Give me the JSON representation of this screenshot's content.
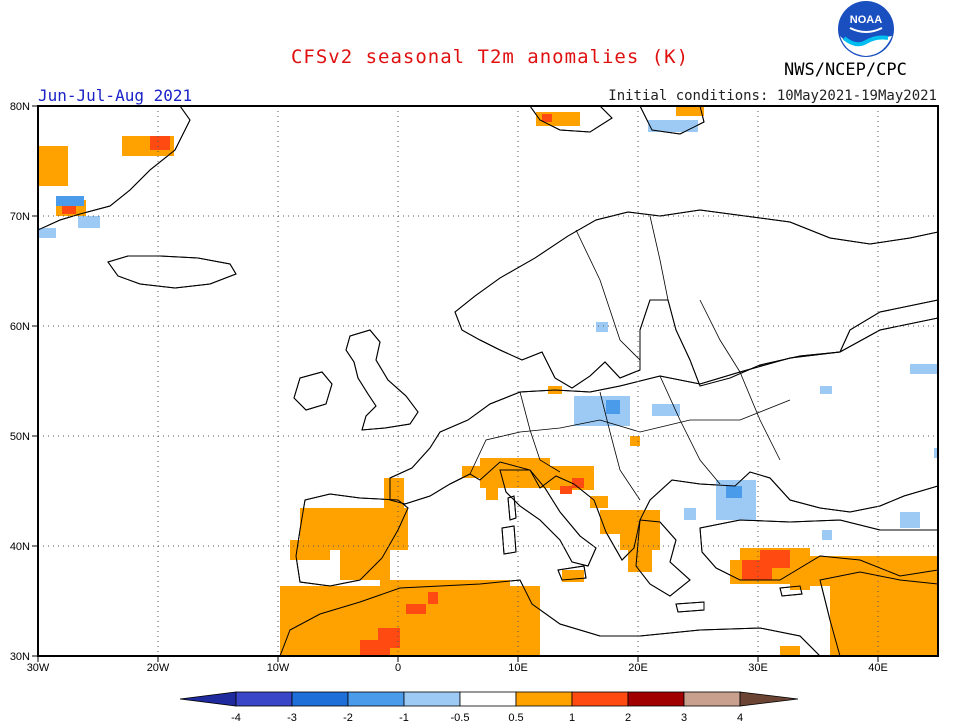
{
  "header": {
    "title": "CFSv2 seasonal T2m anomalies (K)",
    "agency": "NWS/NCEP/CPC",
    "logo_text": "NOAA",
    "season": "Jun-Jul-Aug 2021",
    "initial_conditions": "Initial conditions: 10May2021-19May2021"
  },
  "map": {
    "lon_labels": [
      "30W",
      "20W",
      "10W",
      "0",
      "10E",
      "20E",
      "30E",
      "40E"
    ],
    "lat_labels": [
      "80N",
      "70N",
      "60N",
      "50N",
      "40N",
      "30N"
    ],
    "lon_range": [
      -30,
      45
    ],
    "lat_range": [
      30,
      80
    ],
    "gridlines": "dotted"
  },
  "legend": {
    "tick_labels": [
      "-4",
      "-3",
      "-2",
      "-1",
      "-0.5",
      "0.5",
      "1",
      "2",
      "3",
      "4"
    ],
    "colors": [
      "#1f2a9e",
      "#3a46c8",
      "#1f6fd8",
      "#4a9bea",
      "#9ccaf5",
      "#ffffff",
      "#ffa200",
      "#ff4a12",
      "#a00000",
      "#c9a08e",
      "#6b4434"
    ]
  },
  "anomaly_regions": [
    {
      "name": "Iberia",
      "sign": "positive",
      "level": "0.5 to 1"
    },
    {
      "name": "North Africa",
      "sign": "positive",
      "level": "0.5 to 2"
    },
    {
      "name": "Italy and Adriatic",
      "sign": "positive",
      "level": "0.5 to 2"
    },
    {
      "name": "Turkey and Middle East",
      "sign": "positive",
      "level": "0.5 to 2"
    },
    {
      "name": "Svalbard",
      "sign": "positive",
      "level": "0.5 to 2"
    },
    {
      "name": "Greenland coast",
      "sign": "positive",
      "level": "0.5 to 2"
    },
    {
      "name": "Poland",
      "sign": "negative",
      "level": "-1 to -0.5"
    },
    {
      "name": "Black Sea west",
      "sign": "negative",
      "level": "-1 to -0.5"
    }
  ]
}
